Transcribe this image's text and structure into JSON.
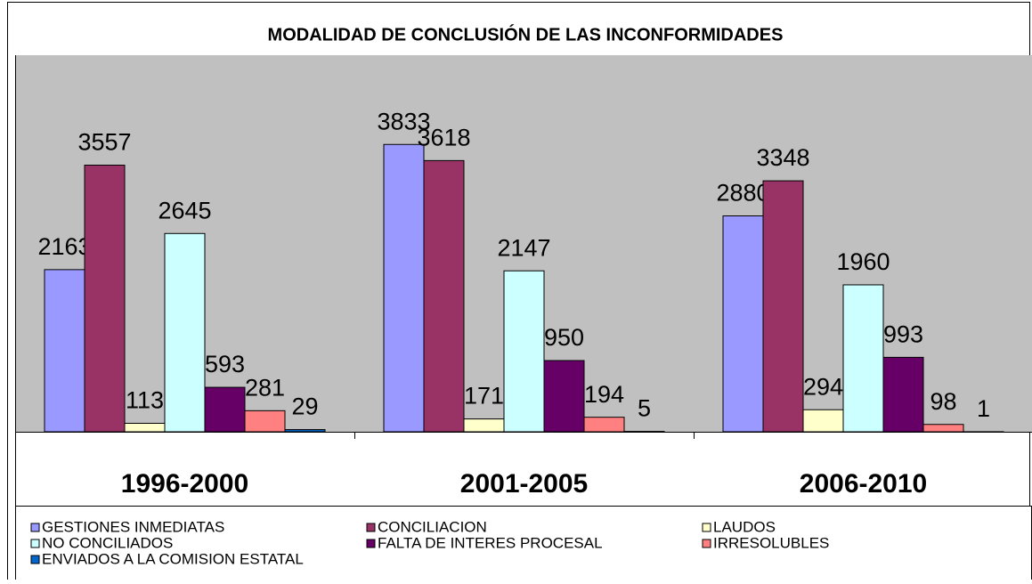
{
  "chart_data": {
    "type": "bar",
    "title": "MODALIDAD DE CONCLUSIÓN  DE LAS INCONFORMIDADES",
    "categories": [
      "1996-2000",
      "2001-2005",
      "2006-2010"
    ],
    "series": [
      {
        "name": "GESTIONES INMEDIATAS",
        "color": "#9999ff",
        "values": [
          2163,
          3833,
          2880
        ]
      },
      {
        "name": "CONCILIACION",
        "color": "#993366",
        "values": [
          3557,
          3618,
          3348
        ]
      },
      {
        "name": "LAUDOS",
        "color": "#ffffcc",
        "values": [
          113,
          171,
          294
        ]
      },
      {
        "name": "NO CONCILIADOS",
        "color": "#ccffff",
        "values": [
          2645,
          2147,
          1960
        ]
      },
      {
        "name": "FALTA DE INTERES PROCESAL",
        "color": "#660066",
        "values": [
          593,
          950,
          993
        ]
      },
      {
        "name": "IRRESOLUBLES",
        "color": "#ff8080",
        "values": [
          281,
          194,
          98
        ]
      },
      {
        "name": "ENVIADOS A LA COMISION ESTATAL",
        "color": "#0066cc",
        "values": [
          29,
          5,
          1
        ]
      }
    ],
    "ylim": [
      0,
      5000
    ]
  }
}
